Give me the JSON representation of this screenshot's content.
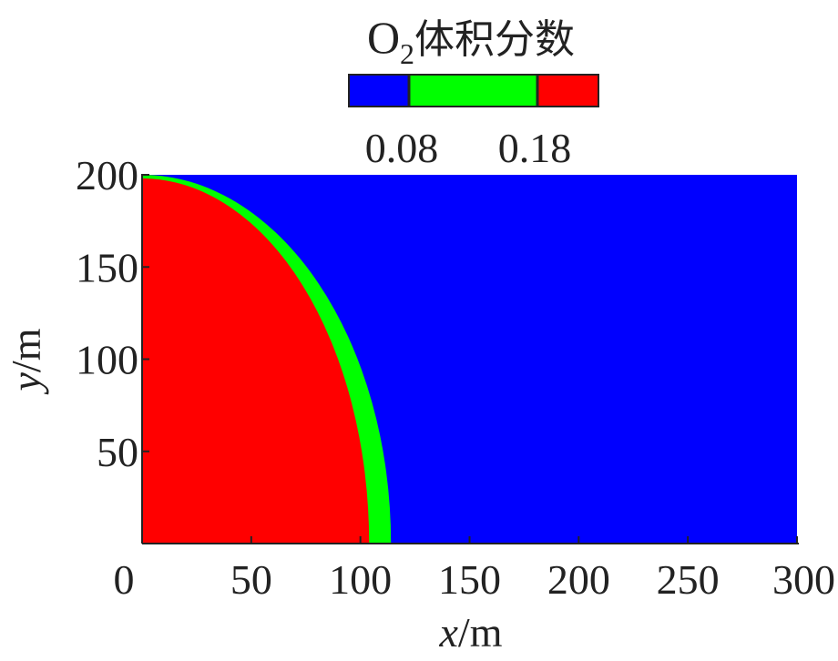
{
  "chart_data": {
    "type": "heatmap",
    "title": "O₂体积分数",
    "title_parts": {
      "base": "O",
      "sub": "2",
      "rest": "体积分数"
    },
    "colorbar": {
      "colors": [
        "#0000ff",
        "#00ff00",
        "#ff0000"
      ],
      "thresholds": [
        0.08,
        0.18
      ],
      "tick_labels": [
        "0.08",
        "0.18"
      ],
      "placement": "top"
    },
    "xlabel": {
      "italic": "x",
      "unit": "/m"
    },
    "ylabel": {
      "italic": "y",
      "unit": "/m"
    },
    "xlim": [
      0,
      300
    ],
    "ylim": [
      0,
      200
    ],
    "x_ticks": [
      0,
      50,
      100,
      150,
      200,
      250,
      300
    ],
    "y_ticks": [
      50,
      100,
      150,
      200
    ],
    "regions": [
      {
        "color": "#ff0000",
        "boundary_radius_x": 104,
        "boundary_radius_y": 198
      },
      {
        "color": "#00ff00",
        "boundary_radius_x": 114,
        "boundary_radius_y": 200
      }
    ],
    "background_color": "#0000ff",
    "grid": false
  }
}
